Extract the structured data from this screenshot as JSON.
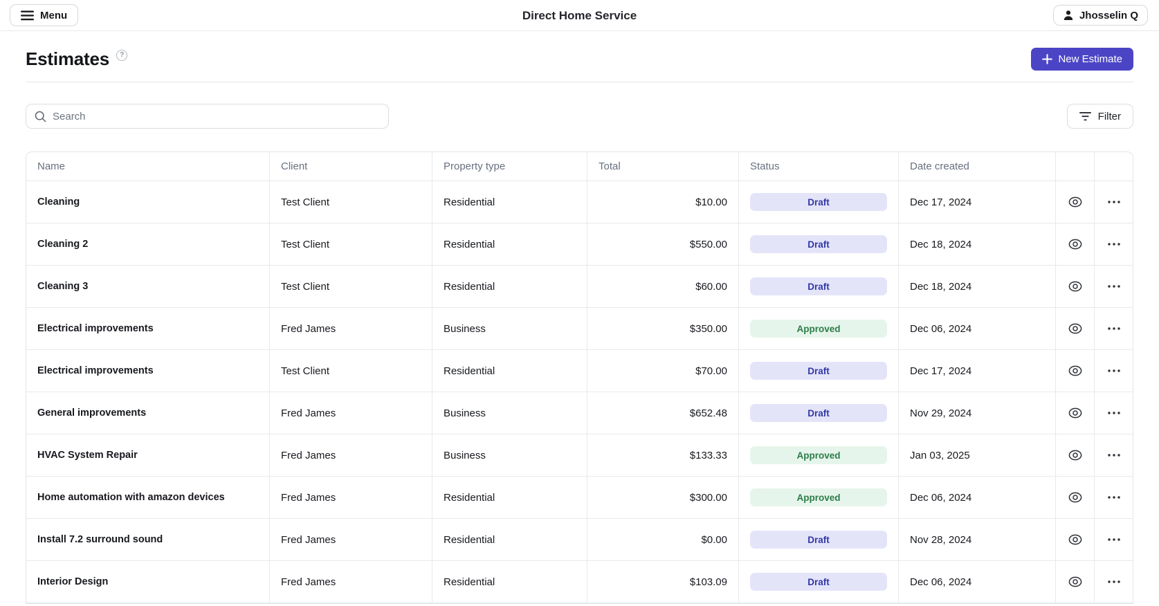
{
  "topbar": {
    "menu_label": "Menu",
    "app_title": "Direct Home Service",
    "user_name": "Jhosselin Q"
  },
  "page": {
    "title": "Estimates",
    "help_glyph": "?",
    "new_estimate_label": "New Estimate"
  },
  "search": {
    "placeholder": "Search"
  },
  "toolbar": {
    "filter_label": "Filter"
  },
  "table": {
    "columns": [
      "Name",
      "Client",
      "Property type",
      "Total",
      "Status",
      "Date created"
    ],
    "rows": [
      {
        "name": "Cleaning",
        "client": "Test Client",
        "property_type": "Residential",
        "total": "$10.00",
        "status": "Draft",
        "date_created": "Dec 17, 2024"
      },
      {
        "name": "Cleaning 2",
        "client": "Test Client",
        "property_type": "Residential",
        "total": "$550.00",
        "status": "Draft",
        "date_created": "Dec 18, 2024"
      },
      {
        "name": "Cleaning 3",
        "client": "Test Client",
        "property_type": "Residential",
        "total": "$60.00",
        "status": "Draft",
        "date_created": "Dec 18, 2024"
      },
      {
        "name": "Electrical improvements",
        "client": "Fred James",
        "property_type": "Business",
        "total": "$350.00",
        "status": "Approved",
        "date_created": "Dec 06, 2024"
      },
      {
        "name": "Electrical improvements",
        "client": "Test Client",
        "property_type": "Residential",
        "total": "$70.00",
        "status": "Draft",
        "date_created": "Dec 17, 2024"
      },
      {
        "name": "General improvements",
        "client": "Fred James",
        "property_type": "Business",
        "total": "$652.48",
        "status": "Draft",
        "date_created": "Nov 29, 2024"
      },
      {
        "name": "HVAC System Repair",
        "client": "Fred James",
        "property_type": "Business",
        "total": "$133.33",
        "status": "Approved",
        "date_created": "Jan 03, 2025"
      },
      {
        "name": "Home automation with amazon devices",
        "client": "Fred James",
        "property_type": "Residential",
        "total": "$300.00",
        "status": "Approved",
        "date_created": "Dec 06, 2024"
      },
      {
        "name": "Install 7.2 surround sound",
        "client": "Fred James",
        "property_type": "Residential",
        "total": "$0.00",
        "status": "Draft",
        "date_created": "Nov 28, 2024"
      },
      {
        "name": "Interior Design",
        "client": "Fred James",
        "property_type": "Residential",
        "total": "$103.09",
        "status": "Draft",
        "date_created": "Dec 06, 2024"
      }
    ]
  },
  "icons": {
    "menu": "hamburger-icon",
    "user": "person-icon",
    "new_estimate": "plus-icon",
    "search": "magnifier-icon",
    "filter": "filter-lines-icon",
    "row_view": "eye-icon",
    "row_more": "ellipsis-icon"
  },
  "colors": {
    "accent": "#4b45c6",
    "draft_bg": "#e4e4f9",
    "draft_text": "#3137a5",
    "approved_bg": "#e6f5eb",
    "approved_text": "#2b7d48",
    "header_text": "#68707f",
    "border": "#e7e9ec"
  }
}
